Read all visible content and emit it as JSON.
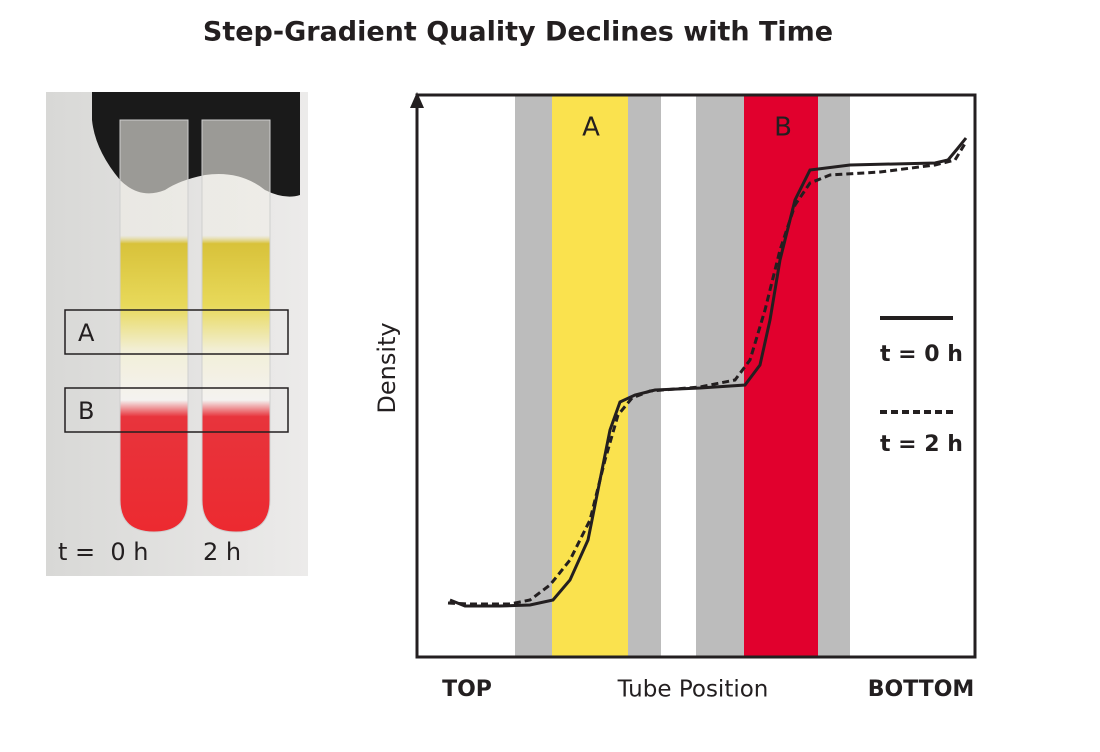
{
  "title": "Step-Gradient Quality Declines with Time",
  "photo": {
    "boxes": [
      "A",
      "B"
    ],
    "labels": [
      "t =  0 h",
      "2 h"
    ]
  },
  "plot": {
    "y_label": "Density",
    "x_label": "Tube Position",
    "x_start": "TOP",
    "x_end": "BOTTOM",
    "bands": [
      "A",
      "B"
    ],
    "legend": [
      "t = 0 h",
      "t = 2 h"
    ]
  }
}
